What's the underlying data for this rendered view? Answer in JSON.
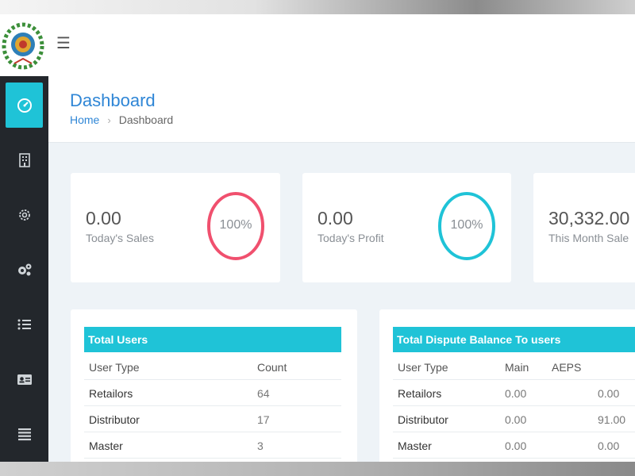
{
  "header": {
    "title": "Dashboard",
    "breadcrumb": {
      "home": "Home",
      "current": "Dashboard"
    }
  },
  "sidebar": {
    "items": [
      {
        "icon": "dashboard-icon",
        "active": true
      },
      {
        "icon": "building-icon"
      },
      {
        "icon": "gear-icon"
      },
      {
        "icon": "gears-icon"
      },
      {
        "icon": "list-icon"
      },
      {
        "icon": "id-card-icon"
      },
      {
        "icon": "menu-lines-icon"
      }
    ]
  },
  "stats": [
    {
      "value": "0.00",
      "label": "Today's Sales",
      "percent": "100%",
      "ring_color": "#f0506e"
    },
    {
      "value": "0.00",
      "label": "Today's Profit",
      "percent": "100%",
      "ring_color": "#1fc3d7"
    },
    {
      "value": "30,332.00",
      "label": "This Month Sale"
    }
  ],
  "total_users": {
    "title": "Total Users",
    "columns": [
      "User Type",
      "Count"
    ],
    "rows": [
      [
        "Retailors",
        "64"
      ],
      [
        "Distributor",
        "17"
      ],
      [
        "Master",
        "3"
      ]
    ]
  },
  "dispute_balance": {
    "title": "Total Dispute Balance To users",
    "columns": [
      "User Type",
      "Main",
      "AEPS"
    ],
    "rows": [
      [
        "Retailors",
        "0.00",
        "0.00"
      ],
      [
        "Distributor",
        "0.00",
        "91.00"
      ],
      [
        "Master",
        "0.00",
        "0.00"
      ]
    ]
  },
  "colors": {
    "accent": "#1fc3d7",
    "link": "#2f86d6",
    "sidebar": "#23272c",
    "sales_ring": "#f0506e"
  }
}
